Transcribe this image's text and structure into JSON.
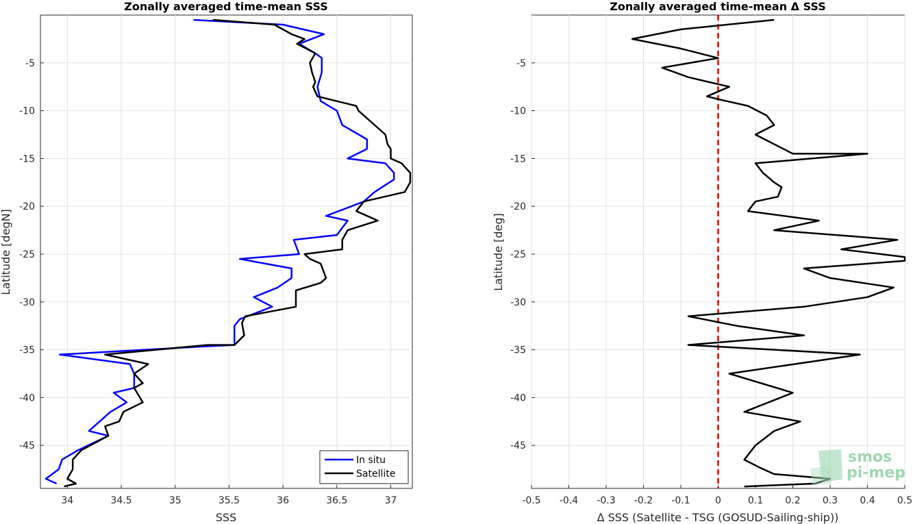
{
  "chart_data": [
    {
      "type": "line",
      "title": "Zonally averaged time-mean SSS",
      "xlabel": "SSS",
      "ylabel": "Latitude [degN]",
      "xlim": [
        33.75,
        37.2
      ],
      "ylim": [
        -49.5,
        0
      ],
      "xticks": [
        "34",
        "34.5",
        "35",
        "35.5",
        "36",
        "36.5",
        "37"
      ],
      "yticks": [
        "-5",
        "-10",
        "-15",
        "-20",
        "-25",
        "-30",
        "-35",
        "-40",
        "-45"
      ],
      "grid": true,
      "legend_position": "bottom-right",
      "series": [
        {
          "name": "In situ",
          "color": "#0000ff",
          "points": [
            [
              35.17,
              -0.5
            ],
            [
              36.0,
              -1.0
            ],
            [
              36.38,
              -2.0
            ],
            [
              36.15,
              -3.0
            ],
            [
              36.3,
              -4.0
            ],
            [
              36.36,
              -4.5
            ],
            [
              36.36,
              -6.0
            ],
            [
              36.32,
              -7.5
            ],
            [
              36.35,
              -9.0
            ],
            [
              36.5,
              -10.0
            ],
            [
              36.55,
              -11.5
            ],
            [
              36.78,
              -13.0
            ],
            [
              36.78,
              -14.0
            ],
            [
              36.6,
              -15.0
            ],
            [
              36.95,
              -15.5
            ],
            [
              37.03,
              -16.5
            ],
            [
              37.03,
              -17.2
            ],
            [
              36.85,
              -18.5
            ],
            [
              36.75,
              -19.5
            ],
            [
              36.4,
              -21.0
            ],
            [
              36.6,
              -21.5
            ],
            [
              36.5,
              -23.0
            ],
            [
              36.1,
              -23.5
            ],
            [
              36.15,
              -25.0
            ],
            [
              35.6,
              -25.5
            ],
            [
              36.08,
              -26.5
            ],
            [
              36.08,
              -27.5
            ],
            [
              35.95,
              -28.5
            ],
            [
              35.73,
              -29.5
            ],
            [
              35.9,
              -30.5
            ],
            [
              35.6,
              -31.8
            ],
            [
              35.55,
              -32.5
            ],
            [
              35.55,
              -34.5
            ],
            [
              35.2,
              -34.7
            ],
            [
              33.93,
              -35.5
            ],
            [
              34.58,
              -36.5
            ],
            [
              34.62,
              -37.5
            ],
            [
              34.62,
              -39.0
            ],
            [
              34.43,
              -39.5
            ],
            [
              34.55,
              -40.5
            ],
            [
              34.4,
              -41.5
            ],
            [
              34.2,
              -43.5
            ],
            [
              34.38,
              -44.0
            ],
            [
              34.1,
              -45.5
            ],
            [
              33.95,
              -46.5
            ],
            [
              33.92,
              -47.5
            ],
            [
              33.8,
              -48.5
            ],
            [
              33.9,
              -49.0
            ]
          ]
        },
        {
          "name": "Satellite",
          "color": "#000000",
          "points": [
            [
              35.35,
              -0.5
            ],
            [
              35.92,
              -1.0
            ],
            [
              36.08,
              -2.0
            ],
            [
              36.2,
              -2.5
            ],
            [
              36.13,
              -3.0
            ],
            [
              36.3,
              -4.0
            ],
            [
              36.25,
              -5.0
            ],
            [
              36.27,
              -6.0
            ],
            [
              36.3,
              -7.0
            ],
            [
              36.28,
              -7.5
            ],
            [
              36.32,
              -8.5
            ],
            [
              36.68,
              -9.5
            ],
            [
              36.7,
              -10.0
            ],
            [
              36.75,
              -10.5
            ],
            [
              36.85,
              -11.5
            ],
            [
              36.95,
              -12.5
            ],
            [
              36.97,
              -13.5
            ],
            [
              37.0,
              -14.0
            ],
            [
              37.0,
              -15.0
            ],
            [
              37.1,
              -15.5
            ],
            [
              37.18,
              -16.5
            ],
            [
              37.18,
              -17.5
            ],
            [
              37.13,
              -18.5
            ],
            [
              36.75,
              -19.5
            ],
            [
              36.68,
              -20.5
            ],
            [
              36.88,
              -21.5
            ],
            [
              36.6,
              -22.5
            ],
            [
              36.55,
              -23.5
            ],
            [
              36.55,
              -24.5
            ],
            [
              36.2,
              -25.0
            ],
            [
              36.25,
              -25.5
            ],
            [
              36.35,
              -26.0
            ],
            [
              36.4,
              -27.5
            ],
            [
              36.35,
              -28.0
            ],
            [
              36.12,
              -28.8
            ],
            [
              36.12,
              -30.5
            ],
            [
              35.65,
              -31.5
            ],
            [
              35.62,
              -32.2
            ],
            [
              35.64,
              -33.5
            ],
            [
              35.55,
              -34.5
            ],
            [
              35.3,
              -34.5
            ],
            [
              34.35,
              -35.5
            ],
            [
              34.75,
              -36.5
            ],
            [
              34.62,
              -37.5
            ],
            [
              34.7,
              -38.5
            ],
            [
              34.62,
              -39.0
            ],
            [
              34.7,
              -40.5
            ],
            [
              34.52,
              -41.5
            ],
            [
              34.48,
              -42.5
            ],
            [
              34.35,
              -43.0
            ],
            [
              34.38,
              -44.0
            ],
            [
              34.13,
              -45.5
            ],
            [
              34.05,
              -46.5
            ],
            [
              34.05,
              -47.5
            ],
            [
              34.0,
              -48.5
            ],
            [
              34.08,
              -49.0
            ],
            [
              33.97,
              -49.3
            ]
          ]
        }
      ]
    },
    {
      "type": "line",
      "title": "Zonally averaged time-mean Δ SSS",
      "xlabel": "Δ SSS (Satellite - TSG (GOSUD-Sailing-ship))",
      "ylabel": "Latitude [deg]",
      "xlim": [
        -0.5,
        0.5
      ],
      "ylim": [
        -49.5,
        0
      ],
      "xticks": [
        "-0.5",
        "-0.4",
        "-0.3",
        "-0.2",
        "-0.1",
        "0",
        "0.1",
        "0.2",
        "0.3",
        "0.4",
        "0.5"
      ],
      "yticks": [
        "-5",
        "-10",
        "-15",
        "-20",
        "-25",
        "-30",
        "-35",
        "-40",
        "-45"
      ],
      "grid": true,
      "reference_line": {
        "x": 0,
        "color": "#e00000",
        "style": "dashed"
      },
      "series": [
        {
          "color": "#000000",
          "points": [
            [
              0.15,
              -0.5
            ],
            [
              -0.1,
              -1.5
            ],
            [
              -0.23,
              -2.5
            ],
            [
              -0.1,
              -3.5
            ],
            [
              0.0,
              -4.5
            ],
            [
              -0.15,
              -5.5
            ],
            [
              -0.08,
              -6.5
            ],
            [
              0.03,
              -7.5
            ],
            [
              -0.03,
              -8.5
            ],
            [
              0.0,
              -8.8
            ],
            [
              0.08,
              -9.5
            ],
            [
              0.13,
              -10.5
            ],
            [
              0.15,
              -11.5
            ],
            [
              0.1,
              -12.5
            ],
            [
              0.15,
              -13.5
            ],
            [
              0.2,
              -14.5
            ],
            [
              0.4,
              -14.5
            ],
            [
              0.1,
              -15.5
            ],
            [
              0.12,
              -16.5
            ],
            [
              0.15,
              -17.5
            ],
            [
              0.17,
              -18.0
            ],
            [
              0.16,
              -19.0
            ],
            [
              0.1,
              -19.5
            ],
            [
              0.08,
              -20.5
            ],
            [
              0.27,
              -21.5
            ],
            [
              0.15,
              -22.5
            ],
            [
              0.48,
              -23.5
            ],
            [
              0.33,
              -24.5
            ],
            [
              0.5,
              -25.3
            ],
            [
              0.5,
              -25.7
            ],
            [
              0.23,
              -26.5
            ],
            [
              0.3,
              -27.5
            ],
            [
              0.47,
              -28.5
            ],
            [
              0.4,
              -29.5
            ],
            [
              0.23,
              -30.5
            ],
            [
              -0.08,
              -31.5
            ],
            [
              0.05,
              -32.5
            ],
            [
              0.23,
              -33.5
            ],
            [
              -0.08,
              -34.5
            ],
            [
              0.38,
              -35.5
            ],
            [
              0.03,
              -37.5
            ],
            [
              0.2,
              -39.5
            ],
            [
              0.07,
              -41.5
            ],
            [
              0.22,
              -42.5
            ],
            [
              0.15,
              -43.5
            ],
            [
              0.1,
              -45.0
            ],
            [
              0.07,
              -46.5
            ],
            [
              0.11,
              -47.3
            ],
            [
              0.15,
              -48.0
            ],
            [
              0.3,
              -48.5
            ],
            [
              0.26,
              -49.0
            ],
            [
              0.07,
              -49.3
            ]
          ]
        }
      ]
    }
  ],
  "legend": {
    "items": [
      {
        "label": "In situ",
        "color": "#0000ff"
      },
      {
        "label": "Satellite",
        "color": "#000000"
      }
    ]
  },
  "logo": {
    "line1": "smos",
    "line2": "pi-mep"
  }
}
